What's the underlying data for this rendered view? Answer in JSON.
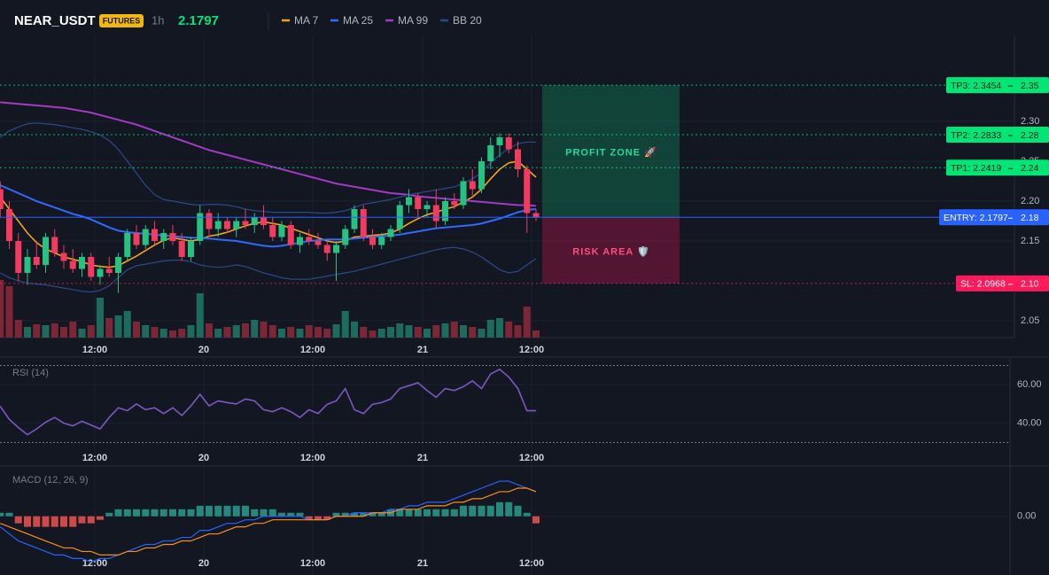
{
  "header": {
    "symbol": "NEAR_USDT",
    "badge": "FUTURES",
    "interval": "1h",
    "price": "2.1797"
  },
  "price_chart": {
    "time_labels": [
      "12:00",
      "20",
      "12:00",
      "21",
      "12:00"
    ],
    "ylim": [
      2.0289,
      2.4078
    ],
    "yticks": [
      2.05,
      2.15,
      {
        "value": 2.2,
        "label": "2.20"
      },
      2.25,
      {
        "value": 2.3,
        "label": "2.30"
      }
    ],
    "candles": {
      "open": [
        2.215,
        2.19,
        2.15,
        2.11,
        2.13,
        2.12,
        2.155,
        2.135,
        2.125,
        2.115,
        2.13,
        2.105,
        2.115,
        2.11,
        2.13,
        2.16,
        2.145,
        2.165,
        2.15,
        2.16,
        2.15,
        2.13,
        2.15,
        2.185,
        2.165,
        2.175,
        2.165,
        2.175,
        2.17,
        2.18,
        2.17,
        2.155,
        2.17,
        2.145,
        2.155,
        2.15,
        2.145,
        2.135,
        2.145,
        2.165,
        2.19,
        2.155,
        2.145,
        2.155,
        2.165,
        2.195,
        2.205,
        2.19,
        2.195,
        2.175,
        2.2,
        2.195,
        2.225,
        2.215,
        2.25,
        2.27,
        2.28,
        2.265,
        2.24,
        2.185
      ],
      "high": [
        2.225,
        2.2,
        2.16,
        2.14,
        2.15,
        2.16,
        2.165,
        2.145,
        2.14,
        2.135,
        2.135,
        2.12,
        2.13,
        2.135,
        2.165,
        2.17,
        2.17,
        2.175,
        2.165,
        2.17,
        2.16,
        2.155,
        2.195,
        2.19,
        2.185,
        2.18,
        2.18,
        2.19,
        2.185,
        2.195,
        2.18,
        2.175,
        2.175,
        2.16,
        2.165,
        2.16,
        2.15,
        2.15,
        2.17,
        2.195,
        2.195,
        2.165,
        2.16,
        2.17,
        2.2,
        2.215,
        2.21,
        2.2,
        2.215,
        2.205,
        2.21,
        2.23,
        2.24,
        2.255,
        2.28,
        2.285,
        2.285,
        2.275,
        2.245,
        2.19
      ],
      "low": [
        2.18,
        2.14,
        2.1,
        2.095,
        2.115,
        2.11,
        2.13,
        2.115,
        2.11,
        2.105,
        2.1,
        2.095,
        2.105,
        2.085,
        2.125,
        2.14,
        2.14,
        2.145,
        2.14,
        2.145,
        2.125,
        2.125,
        2.145,
        2.155,
        2.155,
        2.16,
        2.155,
        2.165,
        2.16,
        2.165,
        2.15,
        2.15,
        2.14,
        2.135,
        2.145,
        2.14,
        2.125,
        2.1,
        2.14,
        2.16,
        2.15,
        2.14,
        2.14,
        2.15,
        2.16,
        2.185,
        2.18,
        2.18,
        2.165,
        2.17,
        2.19,
        2.19,
        2.205,
        2.21,
        2.24,
        2.255,
        2.26,
        2.23,
        2.16,
        2.175
      ],
      "close": [
        2.19,
        2.15,
        2.11,
        2.13,
        2.12,
        2.155,
        2.135,
        2.125,
        2.115,
        2.13,
        2.105,
        2.115,
        2.11,
        2.13,
        2.16,
        2.145,
        2.165,
        2.15,
        2.16,
        2.15,
        2.13,
        2.15,
        2.185,
        2.165,
        2.175,
        2.165,
        2.175,
        2.17,
        2.18,
        2.17,
        2.155,
        2.17,
        2.145,
        2.155,
        2.15,
        2.145,
        2.135,
        2.145,
        2.165,
        2.19,
        2.155,
        2.145,
        2.155,
        2.165,
        2.195,
        2.205,
        2.19,
        2.195,
        2.175,
        2.2,
        2.195,
        2.225,
        2.215,
        2.25,
        2.27,
        2.28,
        2.265,
        2.24,
        2.185,
        2.18
      ]
    },
    "volume": [
      65,
      58,
      20,
      12,
      15,
      14,
      16,
      12,
      18,
      10,
      14,
      45,
      22,
      25,
      30,
      18,
      14,
      12,
      10,
      8,
      10,
      14,
      50,
      16,
      10,
      12,
      14,
      16,
      20,
      18,
      14,
      10,
      12,
      10,
      14,
      12,
      10,
      15,
      30,
      18,
      12,
      8,
      10,
      12,
      16,
      14,
      12,
      10,
      14,
      16,
      18,
      14,
      12,
      10,
      20,
      22,
      18,
      14,
      35,
      8
    ],
    "indicators": [
      {
        "name": "MA 7",
        "color": "#f7a21b",
        "values": [
          2.205,
          2.19,
          2.175,
          2.16,
          2.148,
          2.14,
          2.135,
          2.13,
          2.127,
          2.124,
          2.12,
          2.118,
          2.117,
          2.119,
          2.125,
          2.131,
          2.138,
          2.145,
          2.151,
          2.154,
          2.152,
          2.15,
          2.152,
          2.156,
          2.158,
          2.161,
          2.165,
          2.169,
          2.172,
          2.174,
          2.172,
          2.17,
          2.166,
          2.162,
          2.158,
          2.154,
          2.15,
          2.148,
          2.15,
          2.155,
          2.156,
          2.157,
          2.158,
          2.16,
          2.165,
          2.172,
          2.178,
          2.183,
          2.186,
          2.19,
          2.193,
          2.199,
          2.205,
          2.215,
          2.228,
          2.24,
          2.248,
          2.25,
          2.24,
          2.23
        ]
      },
      {
        "name": "MA 25",
        "color": "#2f6bff",
        "values": [
          2.22,
          2.215,
          2.21,
          2.205,
          2.2,
          2.196,
          2.192,
          2.188,
          2.184,
          2.181,
          2.177,
          2.172,
          2.167,
          2.163,
          2.161,
          2.16,
          2.159,
          2.158,
          2.157,
          2.156,
          2.155,
          2.154,
          2.154,
          2.153,
          2.152,
          2.151,
          2.15,
          2.148,
          2.146,
          2.144,
          2.143,
          2.144,
          2.146,
          2.148,
          2.15,
          2.151,
          2.152,
          2.152,
          2.152,
          2.153,
          2.154,
          2.155,
          2.156,
          2.157,
          2.158,
          2.16,
          2.162,
          2.164,
          2.166,
          2.167,
          2.168,
          2.169,
          2.17,
          2.172,
          2.175,
          2.178,
          2.182,
          2.186,
          2.189,
          2.19
        ]
      },
      {
        "name": "MA 99",
        "color": "#a23bc4",
        "values": [
          2.324,
          2.323,
          2.322,
          2.321,
          2.32,
          2.319,
          2.318,
          2.317,
          2.315,
          2.313,
          2.311,
          2.308,
          2.305,
          2.302,
          2.299,
          2.296,
          2.292,
          2.288,
          2.284,
          2.28,
          2.276,
          2.272,
          2.268,
          2.264,
          2.261,
          2.258,
          2.255,
          2.252,
          2.249,
          2.246,
          2.243,
          2.24,
          2.237,
          2.234,
          2.231,
          2.228,
          2.225,
          2.222,
          2.22,
          2.218,
          2.216,
          2.214,
          2.212,
          2.21,
          2.209,
          2.208,
          2.206,
          2.205,
          2.204,
          2.203,
          2.202,
          2.201,
          2.2,
          2.199,
          2.198,
          2.197,
          2.196,
          2.195,
          2.195,
          2.194
        ]
      },
      {
        "name": "BB 20",
        "color": "#2b4a8c",
        "upper": [
          2.28,
          2.288,
          2.293,
          2.297,
          2.298,
          2.297,
          2.296,
          2.294,
          2.292,
          2.29,
          2.287,
          2.283,
          2.276,
          2.265,
          2.25,
          2.235,
          2.22,
          2.208,
          2.202,
          2.2,
          2.198,
          2.196,
          2.195,
          2.196,
          2.196,
          2.195,
          2.193,
          2.19,
          2.188,
          2.187,
          2.186,
          2.186,
          2.186,
          2.186,
          2.186,
          2.185,
          2.185,
          2.186,
          2.188,
          2.192,
          2.196,
          2.198,
          2.2,
          2.202,
          2.205,
          2.208,
          2.21,
          2.212,
          2.214,
          2.216,
          2.218,
          2.222,
          2.228,
          2.236,
          2.248,
          2.258,
          2.266,
          2.272,
          2.274,
          2.274
        ],
        "lower": [
          2.11,
          2.104,
          2.1,
          2.097,
          2.096,
          2.095,
          2.093,
          2.091,
          2.089,
          2.087,
          2.086,
          2.088,
          2.094,
          2.104,
          2.114,
          2.119,
          2.121,
          2.123,
          2.125,
          2.126,
          2.126,
          2.124,
          2.12,
          2.118,
          2.117,
          2.118,
          2.12,
          2.118,
          2.114,
          2.11,
          2.107,
          2.104,
          2.102,
          2.102,
          2.102,
          2.104,
          2.106,
          2.108,
          2.11,
          2.112,
          2.115,
          2.118,
          2.121,
          2.124,
          2.127,
          2.13,
          2.133,
          2.136,
          2.139,
          2.141,
          2.142,
          2.14,
          2.136,
          2.13,
          2.122,
          2.114,
          2.11,
          2.112,
          2.12,
          2.128
        ]
      }
    ],
    "levels": [
      {
        "label": "TP3: 2.3454",
        "value": 2.3454,
        "axis_label": "2.35",
        "color": "#00e676"
      },
      {
        "label": "TP2: 2.2833",
        "value": 2.2833,
        "axis_label": "2.28",
        "color": "#00e676"
      },
      {
        "label": "TP1: 2.2419",
        "value": 2.2419,
        "axis_label": "2.24",
        "color": "#00e676"
      },
      {
        "label": "ENTRY: 2.1797",
        "value": 2.1797,
        "axis_label": "2.18",
        "color": "#2962ff"
      },
      {
        "label": "SL: 2.0968",
        "value": 2.0968,
        "axis_label": "2.10",
        "color": "#ff1a5b"
      }
    ],
    "zones": [
      {
        "label": "PROFIT ZONE 🚀"
      },
      {
        "label": "RISK AREA 🛡️"
      }
    ]
  },
  "rsi": {
    "title": "RSI (14)",
    "color": "#7e57c2",
    "ylim": [
      17.7,
      74.4
    ],
    "yticks": [
      {
        "value": 60,
        "label": "60.00"
      },
      {
        "value": 40,
        "label": "40.00"
      }
    ],
    "levels": [
      70,
      30
    ],
    "values": [
      48.8,
      42,
      37.7,
      34,
      37,
      40.5,
      43,
      40,
      38.6,
      41,
      39,
      37,
      43,
      48,
      46.5,
      50,
      47,
      48,
      45,
      48,
      44,
      49,
      55,
      49,
      51.6,
      50.7,
      50,
      52.6,
      51.6,
      47,
      46,
      48,
      46,
      43,
      47,
      45,
      49.8,
      51.6,
      58,
      47,
      45,
      49.8,
      50.7,
      52.6,
      58,
      59.5,
      61,
      57,
      53.5,
      58,
      57,
      59,
      62,
      58,
      65.6,
      68,
      64,
      58,
      46.5,
      46.5
    ]
  },
  "macd": {
    "title": "MACD (12, 26, 9)",
    "ylim": [
      -0.0167,
      0.0143
    ],
    "yticks": [
      {
        "value": 0,
        "label": "0.00"
      }
    ],
    "macd_color": "#2962ff",
    "signal_color": "#ff8c1a",
    "macd": [
      -0.003,
      -0.005,
      -0.007,
      -0.008,
      -0.009,
      -0.01,
      -0.011,
      -0.011,
      -0.012,
      -0.012,
      -0.013,
      -0.012,
      -0.012,
      -0.011,
      -0.01,
      -0.009,
      -0.008,
      -0.008,
      -0.007,
      -0.007,
      -0.006,
      -0.006,
      -0.004,
      -0.004,
      -0.003,
      -0.002,
      -0.002,
      -0.001,
      -0.001,
      0.0,
      0.0,
      0.0,
      0.0,
      0.0,
      -0.001,
      -0.001,
      -0.001,
      0.0,
      0.0,
      0.001,
      0.001,
      0.001,
      0.001,
      0.002,
      0.002,
      0.003,
      0.003,
      0.004,
      0.004,
      0.004,
      0.005,
      0.006,
      0.007,
      0.008,
      0.009,
      0.01,
      0.01,
      0.009,
      0.008,
      0.007
    ],
    "signal": [
      -0.002,
      -0.003,
      -0.004,
      -0.005,
      -0.006,
      -0.007,
      -0.008,
      -0.009,
      -0.009,
      -0.01,
      -0.01,
      -0.011,
      -0.011,
      -0.011,
      -0.01,
      -0.01,
      -0.009,
      -0.009,
      -0.008,
      -0.008,
      -0.007,
      -0.007,
      -0.006,
      -0.005,
      -0.005,
      -0.004,
      -0.003,
      -0.003,
      -0.002,
      -0.002,
      -0.001,
      -0.001,
      -0.001,
      -0.001,
      -0.001,
      -0.001,
      -0.001,
      0.0,
      0.0,
      0.0,
      0.0,
      0.001,
      0.001,
      0.001,
      0.002,
      0.002,
      0.002,
      0.003,
      0.003,
      0.003,
      0.004,
      0.004,
      0.005,
      0.005,
      0.006,
      0.007,
      0.007,
      0.008,
      0.008,
      0.007
    ],
    "histogram": [
      0.001,
      0.001,
      -0.002,
      -0.003,
      -0.003,
      -0.003,
      -0.003,
      -0.003,
      -0.003,
      -0.002,
      -0.002,
      -0.001,
      0.001,
      0.002,
      0.002,
      0.002,
      0.002,
      0.002,
      0.002,
      0.002,
      0.002,
      0.002,
      0.003,
      0.003,
      0.003,
      0.003,
      0.003,
      0.003,
      0.002,
      0.002,
      0.002,
      0.001,
      0.001,
      0.001,
      -0.001,
      -0.001,
      -0.001,
      0.001,
      0.001,
      0.001,
      0.001,
      0.001,
      0.001,
      0.002,
      0.002,
      0.002,
      0.002,
      0.002,
      0.002,
      0.002,
      0.002,
      0.003,
      0.003,
      0.003,
      0.003,
      0.004,
      0.004,
      0.003,
      0.001,
      -0.002
    ]
  }
}
